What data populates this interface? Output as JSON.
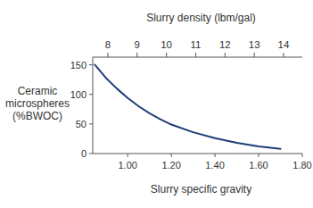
{
  "chart_data": {
    "type": "line",
    "xlabel": "Slurry specific gravity",
    "x2label": "Slurry density (lbm/gal)",
    "ylabel": [
      "Ceramic",
      "microspheres",
      "(%BWOC)"
    ],
    "x": [
      0.85,
      0.9,
      0.95,
      1.0,
      1.05,
      1.1,
      1.15,
      1.2,
      1.3,
      1.4,
      1.5,
      1.6,
      1.7
    ],
    "values": [
      150,
      128,
      110,
      94,
      80,
      68,
      58,
      49,
      36,
      26,
      18,
      12,
      8
    ],
    "color": "#1f3d78",
    "xlim": [
      0.84,
      1.8
    ],
    "xticks": [
      {
        "value": 1.0,
        "label": "1.00"
      },
      {
        "value": 1.2,
        "label": "1.20"
      },
      {
        "value": 1.4,
        "label": "1.40"
      },
      {
        "value": 1.6,
        "label": "1.60"
      },
      {
        "value": 1.8,
        "label": "1.80"
      }
    ],
    "x2lim": [
      7.485,
      14.64
    ],
    "x2ticks": [
      8,
      9,
      10,
      11,
      12,
      13,
      14
    ],
    "ylim": [
      0,
      163
    ],
    "yticks": [
      0,
      50,
      100,
      150
    ],
    "grid": false
  }
}
